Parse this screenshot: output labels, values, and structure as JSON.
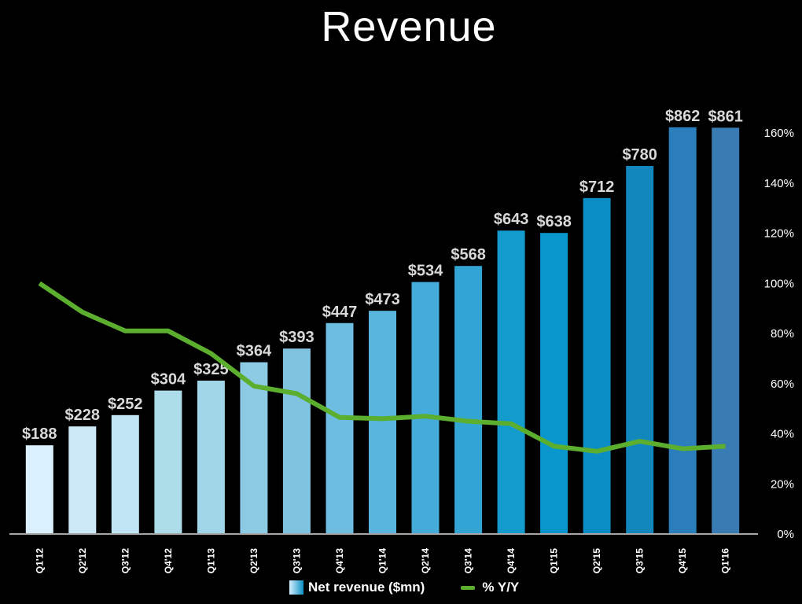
{
  "chart_data": {
    "type": "bar",
    "title": "Revenue",
    "categories": [
      "Q1'12",
      "Q2'12",
      "Q3'12",
      "Q4'12",
      "Q1'13",
      "Q2'13",
      "Q3'13",
      "Q4'13",
      "Q1'14",
      "Q2'14",
      "Q3'14",
      "Q4'14",
      "Q1'15",
      "Q2'15",
      "Q3'15",
      "Q4'15",
      "Q1'16"
    ],
    "series": [
      {
        "name": "Net revenue ($mn)",
        "type": "bar",
        "values": [
          188,
          228,
          252,
          304,
          325,
          364,
          393,
          447,
          473,
          534,
          568,
          643,
          638,
          712,
          780,
          862,
          861
        ],
        "labels": [
          "$188",
          "$228",
          "$252",
          "$304",
          "$325",
          "$364",
          "$393",
          "$447",
          "$473",
          "$534",
          "$568",
          "$643",
          "$638",
          "$712",
          "$780",
          "$862",
          "$861"
        ]
      },
      {
        "name": "% Y/Y",
        "type": "line",
        "axis": "right",
        "values": [
          100,
          88.5,
          81,
          81,
          72,
          59,
          56,
          46.5,
          46,
          47,
          45,
          44,
          35,
          33,
          37,
          34,
          35
        ]
      }
    ],
    "y_right": {
      "range": [
        0,
        160
      ],
      "ticks": [
        "0%",
        "20%",
        "40%",
        "60%",
        "80%",
        "100%",
        "120%",
        "140%",
        "160%"
      ]
    },
    "bar_colors": [
      "#dbf1fd",
      "#cde9f8",
      "#c2e5f4",
      "#addde9",
      "#a1d6e9",
      "#8dcbe4",
      "#7fc3e0",
      "#6cbde0",
      "#5ab5de",
      "#45acd9",
      "#33a5d5",
      "#139bcd",
      "#0996cd",
      "#0a8cc4",
      "#1287be",
      "#2a7ebb",
      "#397cb4"
    ],
    "line_color": "#5cae2f",
    "legend_position": "bottom-center"
  }
}
